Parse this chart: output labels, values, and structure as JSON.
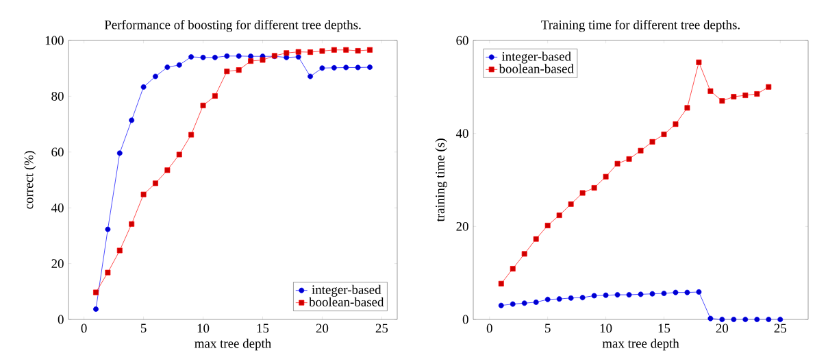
{
  "chart_data": [
    {
      "type": "line",
      "title": "Performance of boosting for different tree depths.",
      "xlabel": "max tree depth",
      "ylabel": "correct (%)",
      "xlim": [
        -1.3,
        26.3
      ],
      "ylim": [
        0,
        100
      ],
      "xticks": [
        0,
        5,
        10,
        15,
        20,
        25
      ],
      "yticks": [
        0,
        20,
        40,
        60,
        80,
        100
      ],
      "legend": "bottom right",
      "grid": false,
      "series": [
        {
          "name": "integer-based",
          "color": "#0000ff",
          "marker": "circle",
          "line_style": "solid",
          "x": [
            1,
            2,
            3,
            4,
            5,
            6,
            7,
            8,
            9,
            10,
            11,
            12,
            13,
            14,
            15,
            16,
            17,
            18,
            19,
            20,
            21,
            22,
            23,
            24
          ],
          "values": [
            3.7,
            32.3,
            59.6,
            71.4,
            83.3,
            87.1,
            90.4,
            91.2,
            94.1,
            93.9,
            93.9,
            94.4,
            94.4,
            94.3,
            94.3,
            94.3,
            93.9,
            94.1,
            87.1,
            90.1,
            90.2,
            90.3,
            90.3,
            90.4
          ]
        },
        {
          "name": "boolean-based",
          "color": "#ff0000",
          "marker": "square",
          "line_style": "solid",
          "x": [
            1,
            2,
            3,
            4,
            5,
            6,
            7,
            8,
            9,
            10,
            11,
            12,
            13,
            14,
            15,
            16,
            17,
            18,
            19,
            20,
            21,
            22,
            23,
            24
          ],
          "values": [
            9.7,
            16.8,
            24.7,
            34.2,
            44.8,
            48.8,
            53.5,
            59.1,
            66.2,
            76.7,
            80.1,
            88.9,
            89.4,
            92.6,
            93.0,
            94.5,
            95.5,
            95.9,
            95.8,
            96.2,
            96.6,
            96.6,
            96.3,
            96.6
          ]
        }
      ]
    },
    {
      "type": "line",
      "title": "Training time for different tree depths.",
      "xlabel": "max tree depth",
      "ylabel": "training time (s)",
      "xlim": [
        -1.4,
        27.4
      ],
      "ylim": [
        0,
        60
      ],
      "xticks": [
        0,
        5,
        10,
        15,
        20,
        25
      ],
      "yticks": [
        0,
        20,
        40,
        60
      ],
      "legend": "top left",
      "grid": false,
      "series": [
        {
          "name": "integer-based",
          "color": "#0000ff",
          "marker": "circle",
          "line_style": "solid",
          "x": [
            1,
            2,
            3,
            4,
            5,
            6,
            7,
            8,
            9,
            10,
            11,
            12,
            13,
            14,
            15,
            16,
            17,
            18,
            19,
            20,
            21,
            22,
            23,
            24,
            25
          ],
          "values": [
            3.0,
            3.3,
            3.5,
            3.7,
            4.3,
            4.4,
            4.6,
            4.7,
            5.1,
            5.2,
            5.3,
            5.3,
            5.4,
            5.5,
            5.6,
            5.8,
            5.8,
            5.9,
            0.2,
            0.0,
            0.0,
            0.0,
            0.0,
            0.0,
            0.0
          ]
        },
        {
          "name": "boolean-based",
          "color": "#ff0000",
          "marker": "square",
          "line_style": "solid",
          "x": [
            1,
            2,
            3,
            4,
            5,
            6,
            7,
            8,
            9,
            10,
            11,
            12,
            13,
            14,
            15,
            16,
            17,
            18,
            19,
            20,
            21,
            22,
            23,
            24
          ],
          "values": [
            7.7,
            10.9,
            14.1,
            17.3,
            20.2,
            22.4,
            24.8,
            27.2,
            28.3,
            30.7,
            33.5,
            34.5,
            36.3,
            38.2,
            39.8,
            42.0,
            45.5,
            55.3,
            49.1,
            47.0,
            47.9,
            48.2,
            48.5,
            50.0
          ]
        }
      ]
    }
  ]
}
